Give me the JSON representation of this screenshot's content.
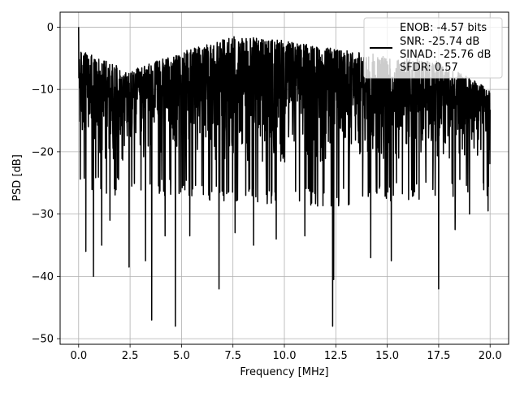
{
  "chart_data": {
    "type": "line",
    "title": "",
    "xlabel": "Frequency [MHz]",
    "ylabel": "PSD [dB]",
    "xlim": [
      -0.9,
      20.9
    ],
    "ylim": [
      -50.9,
      2.4
    ],
    "xticks": [
      0.0,
      2.5,
      5.0,
      7.5,
      10.0,
      12.5,
      15.0,
      17.5,
      20.0
    ],
    "xtick_labels": [
      "0.0",
      "2.5",
      "5.0",
      "7.5",
      "10.0",
      "12.5",
      "15.0",
      "17.5",
      "20.0"
    ],
    "yticks": [
      0,
      -10,
      -20,
      -30,
      -40,
      -50
    ],
    "ytick_labels": [
      "0",
      "−10",
      "−20",
      "−30",
      "−40",
      "−50"
    ],
    "grid": true,
    "legend_position": "top-right",
    "series": [
      {
        "color": "#000000",
        "x_range": [
          0.0,
          20.0
        ],
        "samples": 2000,
        "trend": {
          "x": [
            0.0,
            2.5,
            5.0,
            7.5,
            10.0,
            12.5,
            15.0,
            17.5,
            20.0
          ],
          "upper": [
            -3.5,
            -7.0,
            -4.0,
            -1.5,
            -2.0,
            -3.5,
            -4.5,
            -5.5,
            -10.0
          ],
          "lower": [
            -24.0,
            -24.0,
            -24.5,
            -25.0,
            -25.5,
            -26.0,
            -25.0,
            -24.5,
            -24.0
          ]
        },
        "peaks": [
          {
            "x": 0.0,
            "y": 0.0
          },
          {
            "x": 0.03,
            "y": -5.2
          }
        ],
        "dips": [
          {
            "x": 0.0,
            "y": -27.0
          },
          {
            "x": 0.35,
            "y": -36.0
          },
          {
            "x": 0.72,
            "y": -40.0
          },
          {
            "x": 1.12,
            "y": -35.0
          },
          {
            "x": 1.52,
            "y": -31.0
          },
          {
            "x": 2.45,
            "y": -38.5
          },
          {
            "x": 3.25,
            "y": -37.5
          },
          {
            "x": 3.55,
            "y": -47.0
          },
          {
            "x": 4.2,
            "y": -33.5
          },
          {
            "x": 4.7,
            "y": -48.0
          },
          {
            "x": 5.4,
            "y": -33.5
          },
          {
            "x": 6.82,
            "y": -42.0
          },
          {
            "x": 7.6,
            "y": -33.0
          },
          {
            "x": 8.5,
            "y": -35.0
          },
          {
            "x": 9.6,
            "y": -34.0
          },
          {
            "x": 11.0,
            "y": -33.5
          },
          {
            "x": 12.35,
            "y": -48.0
          },
          {
            "x": 12.4,
            "y": -40.5
          },
          {
            "x": 14.2,
            "y": -37.0
          },
          {
            "x": 15.2,
            "y": -37.5
          },
          {
            "x": 17.5,
            "y": -42.0
          },
          {
            "x": 18.3,
            "y": -32.5
          },
          {
            "x": 19.0,
            "y": -30.0
          },
          {
            "x": 19.9,
            "y": -29.5
          }
        ]
      }
    ],
    "legend": {
      "lines": [
        "ENOB: -4.57 bits",
        "SNR: -25.74 dB",
        "SINAD: -25.76 dB",
        "SFDR: 0.57"
      ]
    }
  }
}
